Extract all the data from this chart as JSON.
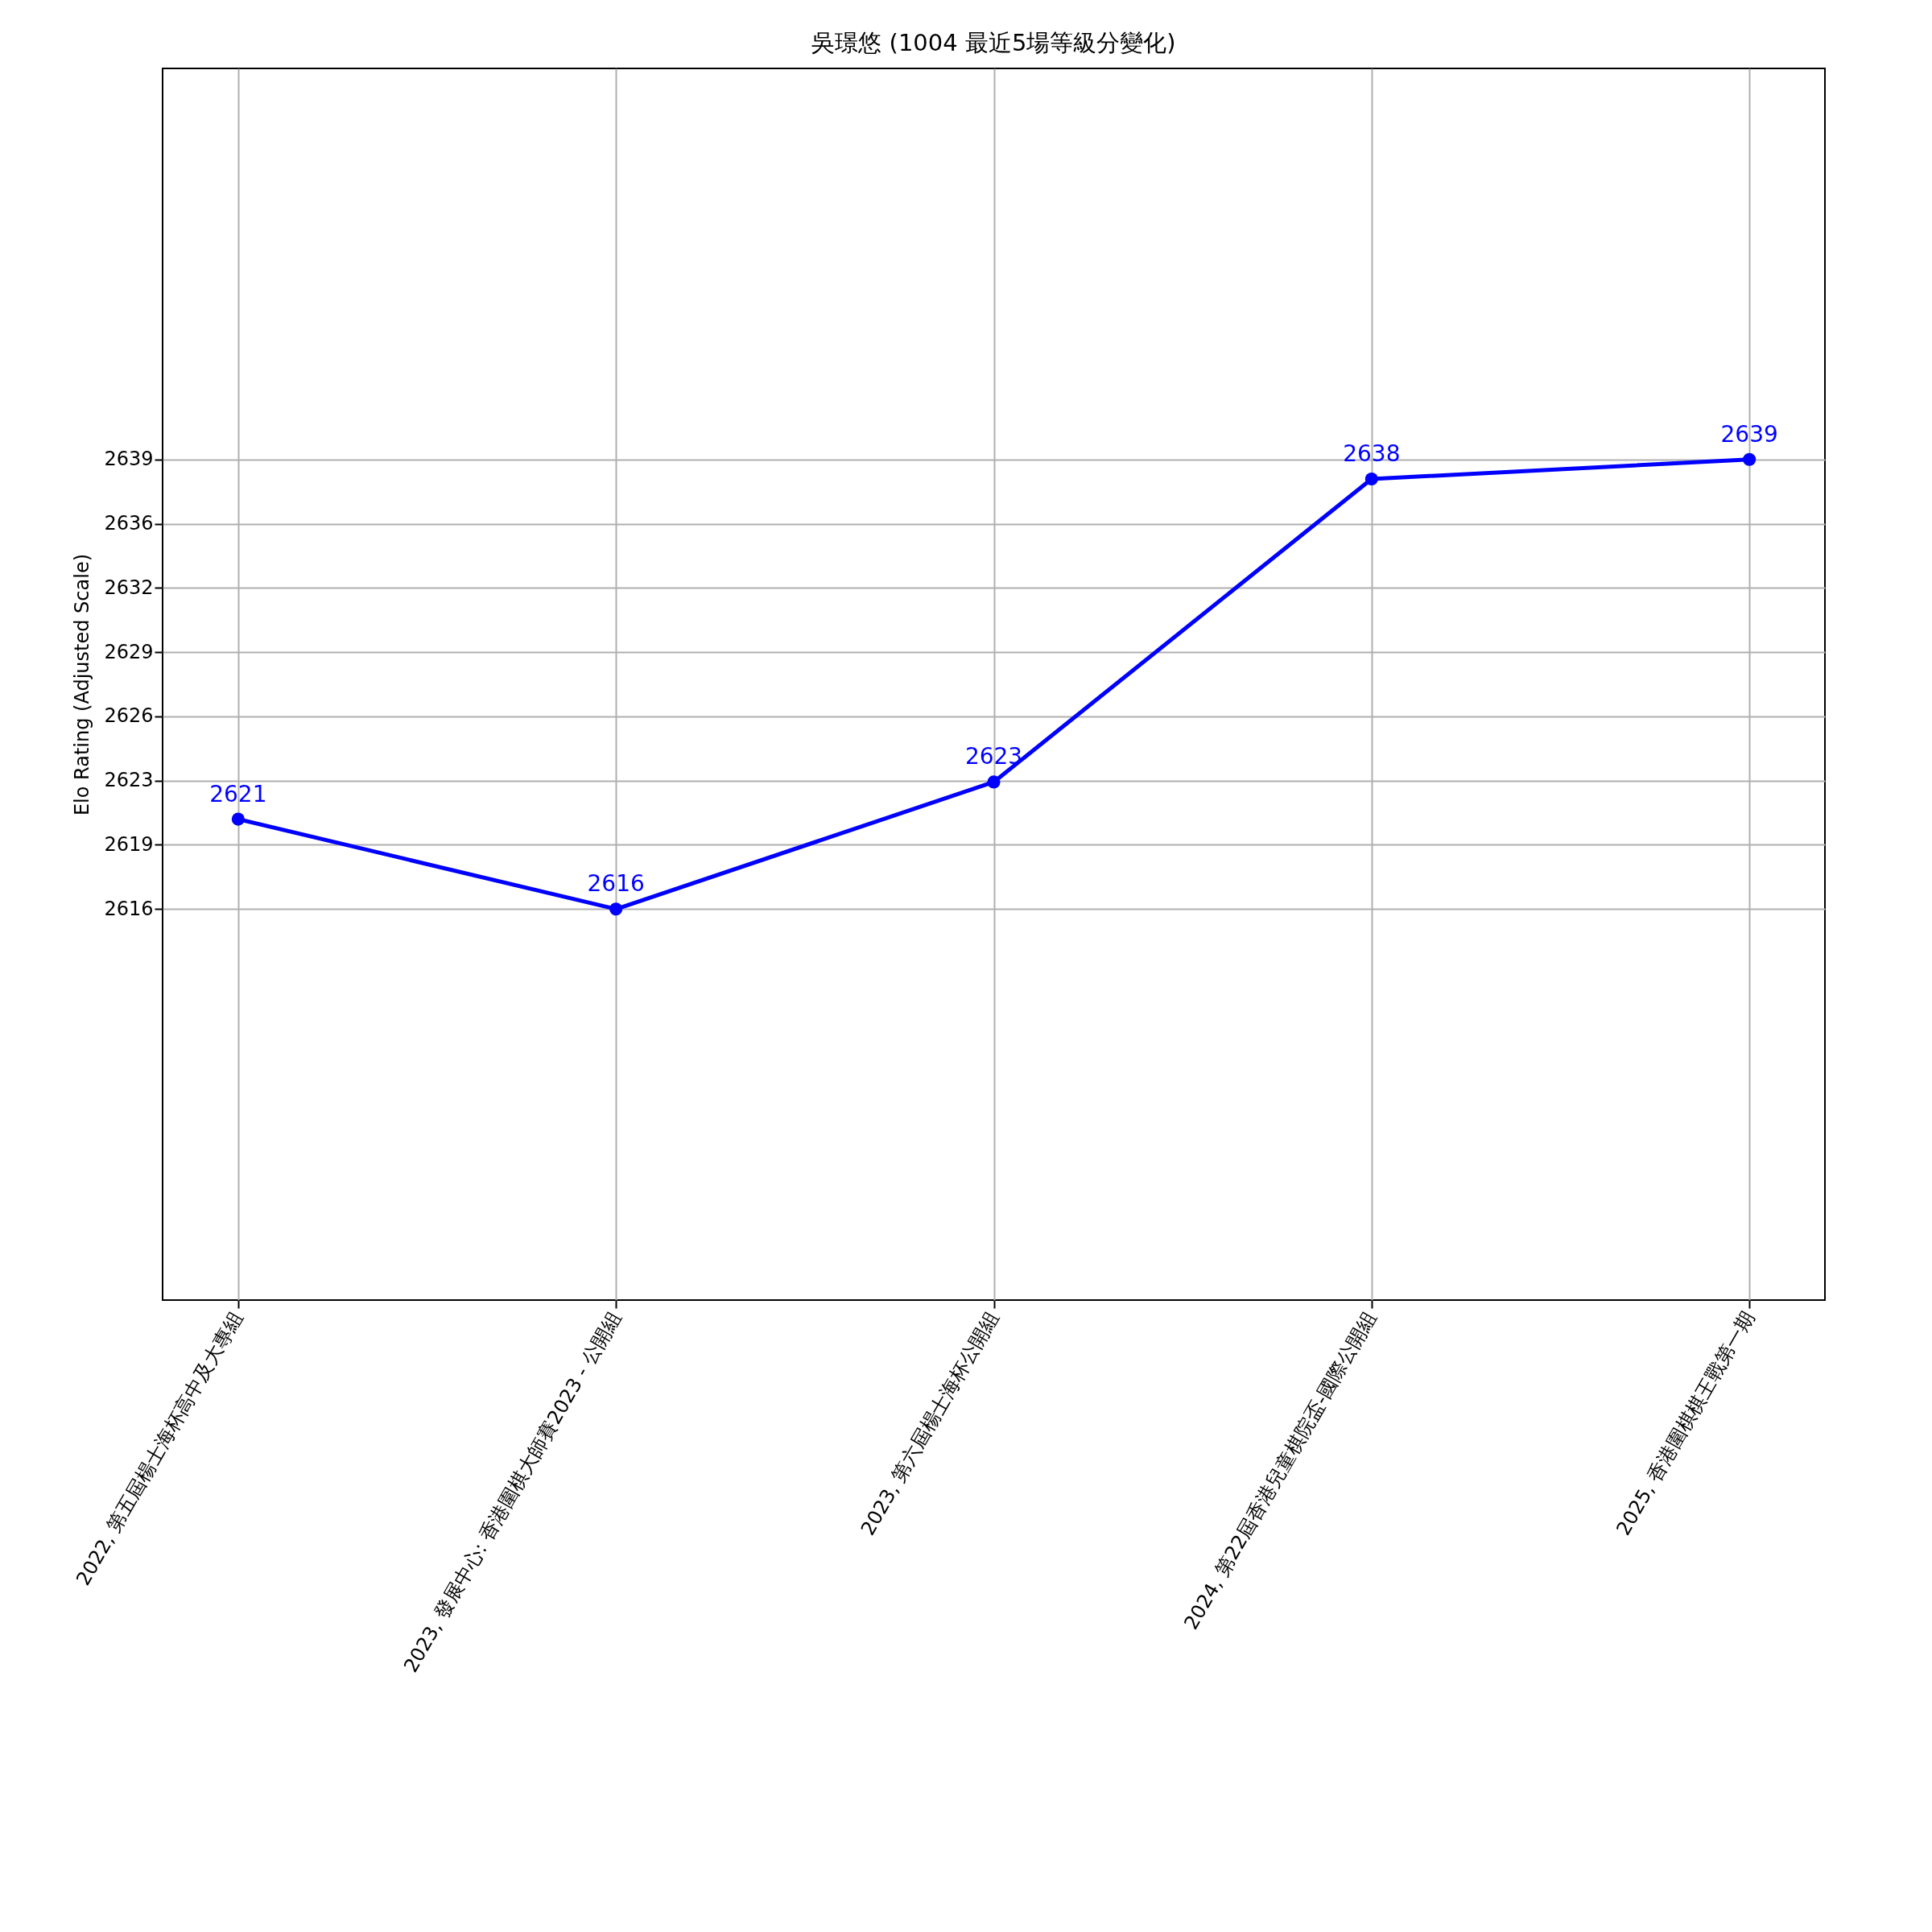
{
  "chart_data": {
    "type": "line",
    "title": "吳璟悠 (1004 最近5場等級分變化)",
    "ylabel": "Elo Rating (Adjusted Scale)",
    "categories": [
      "2022, 第五屆楊士海杯高中及大專組",
      "2023, 發展中心: 香港圍棋大師賽2023 - 公開組",
      "2023, 第六屆楊士海杯公開組",
      "2024, 第22屆香港兒童棋院盃-國際公開組",
      "2025, 香港圍棋棋王戰第一期"
    ],
    "series": [
      {
        "color": "#0000ff",
        "values": [
          2620.6,
          2616,
          2622.5,
          2638,
          2639
        ],
        "value_labels": [
          "2621",
          "2616",
          "2623",
          "2638",
          "2639"
        ]
      }
    ],
    "ylim": [
      2596,
      2659
    ],
    "yticks": [
      2616,
      {
        "value": 2619.29,
        "label": "2619"
      },
      {
        "value": 2622.57,
        "label": "2623"
      },
      {
        "value": 2625.86,
        "label": "2626"
      },
      {
        "value": 2629.14,
        "label": "2629"
      },
      {
        "value": 2632.43,
        "label": "2632"
      },
      {
        "value": 2635.71,
        "label": "2636"
      },
      2639
    ],
    "grid": true,
    "marker": "circle",
    "line_style": "solid"
  }
}
